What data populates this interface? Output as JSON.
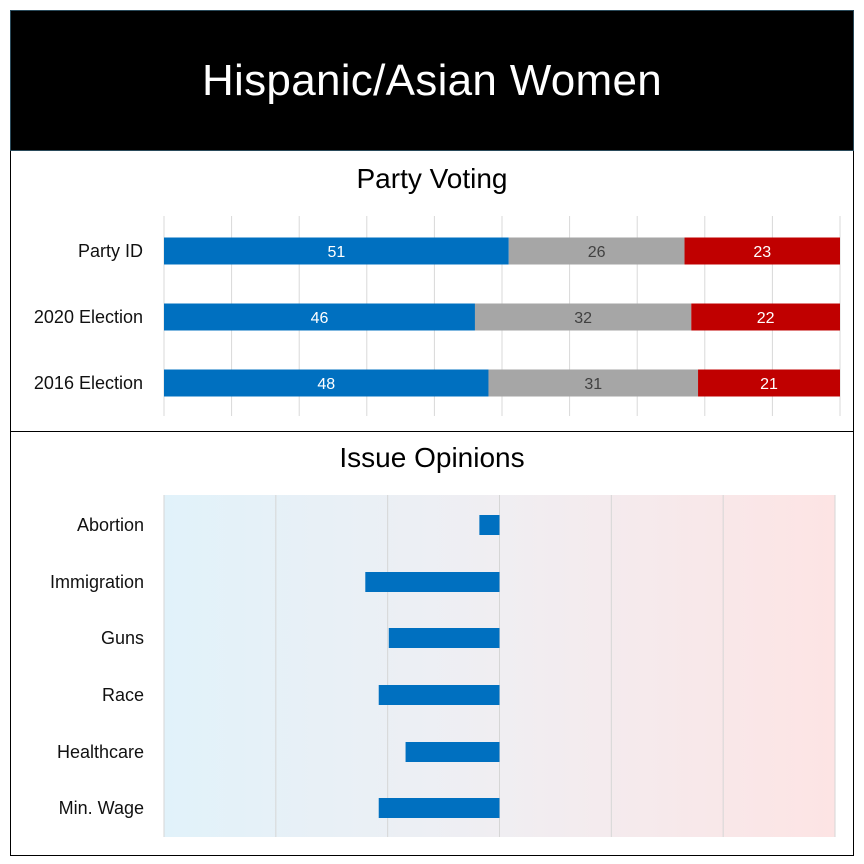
{
  "title": "Hispanic/Asian Women",
  "colors": {
    "blue": "#0070C0",
    "gray": "#A6A6A6",
    "red": "#C00000",
    "issue_bar": "#0070C0",
    "bg_left": "#E1F2FA",
    "bg_right": "#FDE4E4"
  },
  "chart_data": [
    {
      "type": "bar",
      "orientation": "horizontal",
      "stacked": true,
      "title": "Party Voting",
      "categories": [
        "Party ID",
        "2020 Election",
        "2016 Election"
      ],
      "series": [
        {
          "values": [
            51,
            46,
            48
          ],
          "color": "#0070C0"
        },
        {
          "values": [
            26,
            32,
            31
          ],
          "color": "#A6A6A6"
        },
        {
          "values": [
            23,
            22,
            21
          ],
          "color": "#C00000"
        }
      ],
      "xlim": [
        0,
        100
      ],
      "grid": true
    },
    {
      "type": "bar",
      "orientation": "horizontal",
      "title": "Issue Opinions",
      "categories": [
        "Abortion",
        "Immigration",
        "Guns",
        "Race",
        "Healthcare",
        "Min. Wage"
      ],
      "values": [
        -3,
        -20,
        -16.5,
        -18,
        -14,
        -18
      ],
      "xlim": [
        -50,
        50
      ],
      "grid": true,
      "background": "gradient blue (left) to red (right)"
    }
  ]
}
